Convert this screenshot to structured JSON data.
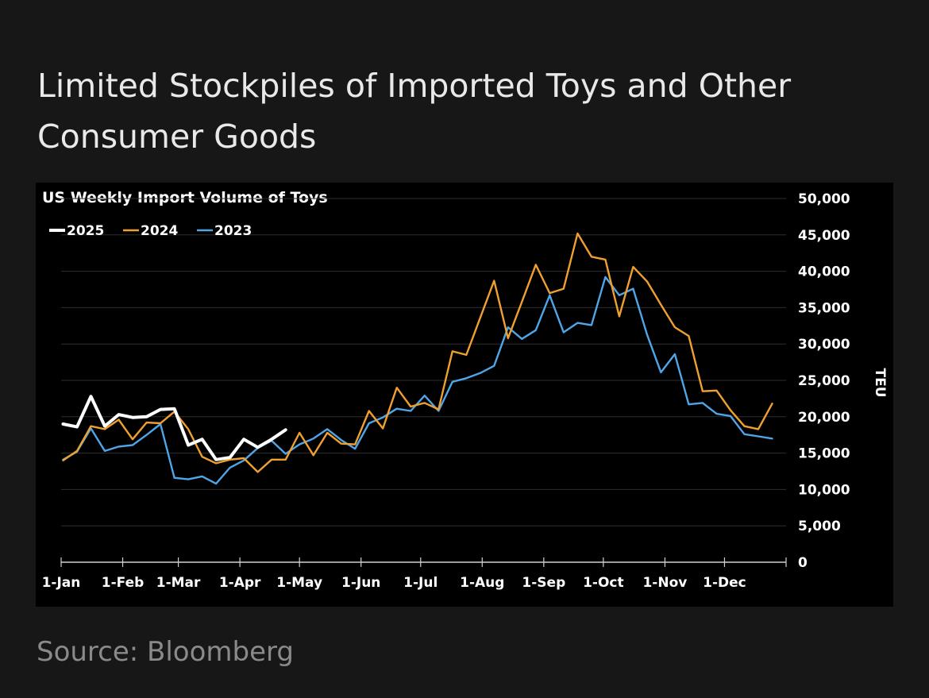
{
  "headline": "Limited Stockpiles of Imported Toys and Other Consumer Goods",
  "source": "Source: Bloomberg",
  "colors": {
    "page_background": "#171717",
    "chart_background": "#000000",
    "series_2025": "#ffffff",
    "series_2024": "#f0a030",
    "series_2023": "#4ea6e8"
  },
  "chart_data": {
    "type": "line",
    "title": "US Weekly Import Volume of Toys",
    "ylabel": "TEU",
    "xlabel": "",
    "x_tick_labels": [
      "1-Jan",
      "1-Feb",
      "1-Mar",
      "1-Apr",
      "1-May",
      "1-Jun",
      "1-Jul",
      "1-Aug",
      "1-Sep",
      "1-Oct",
      "1-Nov",
      "1-Dec"
    ],
    "y_tick_labels": [
      "0",
      "5,000",
      "10,000",
      "15,000",
      "20,000",
      "25,000",
      "30,000",
      "35,000",
      "40,000",
      "45,000",
      "50,000"
    ],
    "ylim": [
      0,
      50000
    ],
    "y_axis_side": "right",
    "grid": "horizontal",
    "legend_position": "top-left",
    "series": [
      {
        "name": "2025",
        "x": [
          "2025-01-02",
          "2025-01-09",
          "2025-01-16",
          "2025-01-23",
          "2025-01-30",
          "2025-02-06",
          "2025-02-13",
          "2025-02-20",
          "2025-02-27",
          "2025-03-06",
          "2025-03-13",
          "2025-03-20",
          "2025-03-27",
          "2025-04-03",
          "2025-04-10",
          "2025-04-17",
          "2025-04-24",
          "2025-05-01"
        ],
        "values": [
          19000,
          18600,
          22800,
          18700,
          20300,
          19900,
          20000,
          21000,
          21100,
          16100,
          16900,
          14100,
          14400,
          16900,
          15800,
          16900,
          18200,
          null
        ]
      },
      {
        "name": "2024",
        "x": [
          "2025-01-02",
          "2025-01-09",
          "2025-01-16",
          "2025-01-23",
          "2025-01-30",
          "2025-02-06",
          "2025-02-13",
          "2025-02-20",
          "2025-02-27",
          "2025-03-06",
          "2025-03-13",
          "2025-03-20",
          "2025-03-27",
          "2025-04-03",
          "2025-04-10",
          "2025-04-17",
          "2025-04-24",
          "2025-05-01",
          "2025-05-08",
          "2025-05-15",
          "2025-05-22",
          "2025-05-29",
          "2025-06-05",
          "2025-06-12",
          "2025-06-19",
          "2025-06-26",
          "2025-07-03",
          "2025-07-10",
          "2025-07-17",
          "2025-07-24",
          "2025-07-31",
          "2025-08-07",
          "2025-08-14",
          "2025-08-21",
          "2025-08-28",
          "2025-09-04",
          "2025-09-11",
          "2025-09-18",
          "2025-09-25",
          "2025-10-02",
          "2025-10-09",
          "2025-10-16",
          "2025-10-23",
          "2025-10-30",
          "2025-11-06",
          "2025-11-13",
          "2025-11-20",
          "2025-11-27",
          "2025-12-04",
          "2025-12-11",
          "2025-12-18",
          "2025-12-25"
        ],
        "values": [
          14000,
          15300,
          18700,
          18300,
          19600,
          16900,
          19200,
          19100,
          20700,
          18300,
          14500,
          13600,
          14100,
          14300,
          12400,
          14100,
          14100,
          17800,
          14700,
          17800,
          16300,
          16200,
          20800,
          18400,
          24000,
          21400,
          21900,
          21000,
          29000,
          28500,
          33600,
          38700,
          30800,
          35800,
          40900,
          37000,
          37600,
          45200,
          42000,
          41600,
          33800,
          40600,
          38600,
          35400,
          32300,
          31100,
          23500,
          23600,
          20900,
          18700,
          18300,
          21800
        ]
      },
      {
        "name": "2023",
        "x": [
          "2025-01-02",
          "2025-01-09",
          "2025-01-16",
          "2025-01-23",
          "2025-01-30",
          "2025-02-06",
          "2025-02-13",
          "2025-02-20",
          "2025-02-27",
          "2025-03-06",
          "2025-03-13",
          "2025-03-20",
          "2025-03-27",
          "2025-04-03",
          "2025-04-10",
          "2025-04-17",
          "2025-04-24",
          "2025-05-01",
          "2025-05-08",
          "2025-05-15",
          "2025-05-22",
          "2025-05-29",
          "2025-06-05",
          "2025-06-12",
          "2025-06-19",
          "2025-06-26",
          "2025-07-03",
          "2025-07-10",
          "2025-07-17",
          "2025-07-24",
          "2025-07-31",
          "2025-08-07",
          "2025-08-14",
          "2025-08-21",
          "2025-08-28",
          "2025-09-04",
          "2025-09-11",
          "2025-09-18",
          "2025-09-25",
          "2025-10-02",
          "2025-10-09",
          "2025-10-16",
          "2025-10-23",
          "2025-10-30",
          "2025-11-06",
          "2025-11-13",
          "2025-11-20",
          "2025-11-27",
          "2025-12-04",
          "2025-12-11",
          "2025-12-18",
          "2025-12-25"
        ],
        "values": [
          14100,
          15200,
          18400,
          15300,
          15900,
          16100,
          17500,
          19000,
          11600,
          11400,
          11800,
          10800,
          13000,
          14000,
          15700,
          16700,
          14900,
          16200,
          17000,
          18300,
          16800,
          15600,
          19100,
          19900,
          21100,
          20800,
          22900,
          20800,
          24800,
          25300,
          26000,
          27000,
          32300,
          30700,
          31900,
          36700,
          31600,
          32900,
          32600,
          39200,
          36700,
          37600,
          31300,
          26100,
          28600,
          21700,
          21900,
          20400,
          20100,
          17600,
          17300,
          17000
        ]
      }
    ]
  }
}
